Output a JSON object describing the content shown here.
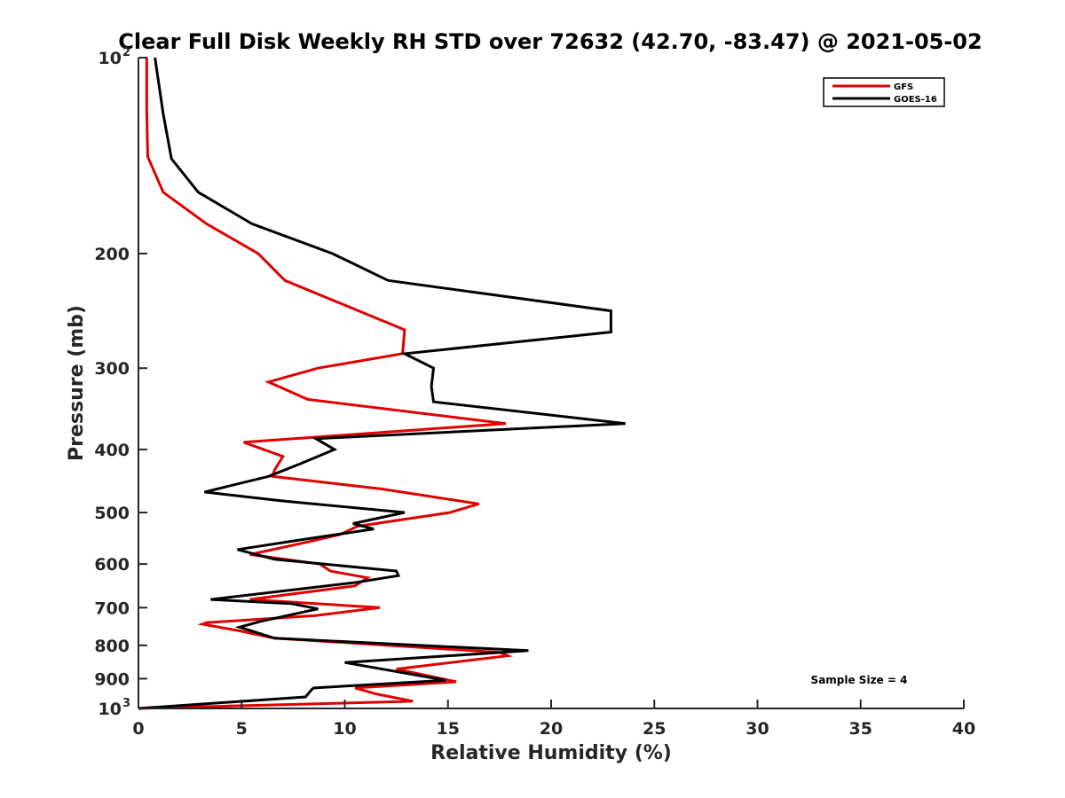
{
  "chart_data": {
    "type": "line",
    "title": "Clear Full Disk Weekly RH STD over 72632 (42.70, -83.47) @ 2021-05-02",
    "xlabel": "Relative Humidity (%)",
    "ylabel": "Pressure (mb)",
    "xlim": [
      0,
      40
    ],
    "ylim": [
      100,
      1000
    ],
    "y_scale": "log",
    "y_reversed": true,
    "x_ticks": [
      "0",
      "5",
      "10",
      "15",
      "20",
      "25",
      "30",
      "35",
      "40"
    ],
    "y_ticks": [
      {
        "value": 100,
        "label": "10",
        "sup": "2"
      },
      {
        "value": 200,
        "label": "200",
        "sup": ""
      },
      {
        "value": 300,
        "label": "300",
        "sup": ""
      },
      {
        "value": 400,
        "label": "400",
        "sup": ""
      },
      {
        "value": 500,
        "label": "500",
        "sup": ""
      },
      {
        "value": 600,
        "label": "600",
        "sup": ""
      },
      {
        "value": 700,
        "label": "700",
        "sup": ""
      },
      {
        "value": 800,
        "label": "800",
        "sup": ""
      },
      {
        "value": 900,
        "label": "900",
        "sup": ""
      },
      {
        "value": 1000,
        "label": "10",
        "sup": "3"
      }
    ],
    "legend_position": "top-right",
    "annotation": "Sample Size = 4",
    "series": [
      {
        "name": "GFS",
        "color": "#e00000",
        "points": [
          [
            0.4,
            100
          ],
          [
            0.4,
            120
          ],
          [
            0.45,
            142
          ],
          [
            1.2,
            161
          ],
          [
            3.3,
            180
          ],
          [
            5.8,
            200
          ],
          [
            7.1,
            220
          ],
          [
            12.9,
            262
          ],
          [
            12.8,
            285
          ],
          [
            8.7,
            300
          ],
          [
            6.3,
            315
          ],
          [
            8.2,
            335
          ],
          [
            17.8,
            365
          ],
          [
            5.1,
            390
          ],
          [
            7.0,
            410
          ],
          [
            6.6,
            430
          ],
          [
            6.5,
            440
          ],
          [
            11.8,
            460
          ],
          [
            16.5,
            485
          ],
          [
            15.1,
            500
          ],
          [
            10.6,
            525
          ],
          [
            9.8,
            540
          ],
          [
            8.2,
            555
          ],
          [
            5.4,
            580
          ],
          [
            8.8,
            600
          ],
          [
            9.3,
            615
          ],
          [
            11.1,
            630
          ],
          [
            10.5,
            648
          ],
          [
            5.4,
            680
          ],
          [
            11.7,
            700
          ],
          [
            8.6,
            720
          ],
          [
            3.3,
            738
          ],
          [
            3.1,
            742
          ],
          [
            4.9,
            760
          ],
          [
            6.6,
            780
          ],
          [
            17.5,
            820
          ],
          [
            17.9,
            830
          ],
          [
            12.5,
            870
          ],
          [
            15.4,
            910
          ],
          [
            10.5,
            930
          ],
          [
            11.5,
            950
          ],
          [
            13.3,
            975
          ],
          [
            0.0,
            1000
          ]
        ]
      },
      {
        "name": "GOES-16",
        "color": "#000000",
        "points": [
          [
            0.8,
            100
          ],
          [
            1.2,
            122
          ],
          [
            1.6,
            143
          ],
          [
            2.9,
            161
          ],
          [
            5.5,
            180
          ],
          [
            9.4,
            200
          ],
          [
            12.1,
            220
          ],
          [
            22.9,
            245
          ],
          [
            22.9,
            264
          ],
          [
            12.9,
            285
          ],
          [
            14.3,
            300
          ],
          [
            14.2,
            320
          ],
          [
            14.3,
            338
          ],
          [
            23.6,
            365
          ],
          [
            8.6,
            385
          ],
          [
            9.5,
            400
          ],
          [
            7.9,
            420
          ],
          [
            6.3,
            440
          ],
          [
            3.2,
            465
          ],
          [
            7.0,
            480
          ],
          [
            12.9,
            500
          ],
          [
            10.4,
            520
          ],
          [
            11.4,
            530
          ],
          [
            8.0,
            550
          ],
          [
            4.8,
            570
          ],
          [
            6.6,
            590
          ],
          [
            12.5,
            615
          ],
          [
            12.6,
            625
          ],
          [
            10.6,
            640
          ],
          [
            3.5,
            680
          ],
          [
            7.4,
            690
          ],
          [
            8.7,
            703
          ],
          [
            5.9,
            735
          ],
          [
            4.9,
            750
          ],
          [
            6.6,
            780
          ],
          [
            18.9,
            815
          ],
          [
            10.0,
            850
          ],
          [
            14.9,
            905
          ],
          [
            8.5,
            930
          ],
          [
            8.4,
            935
          ],
          [
            8.1,
            960
          ],
          [
            0.0,
            1000
          ]
        ]
      }
    ]
  }
}
